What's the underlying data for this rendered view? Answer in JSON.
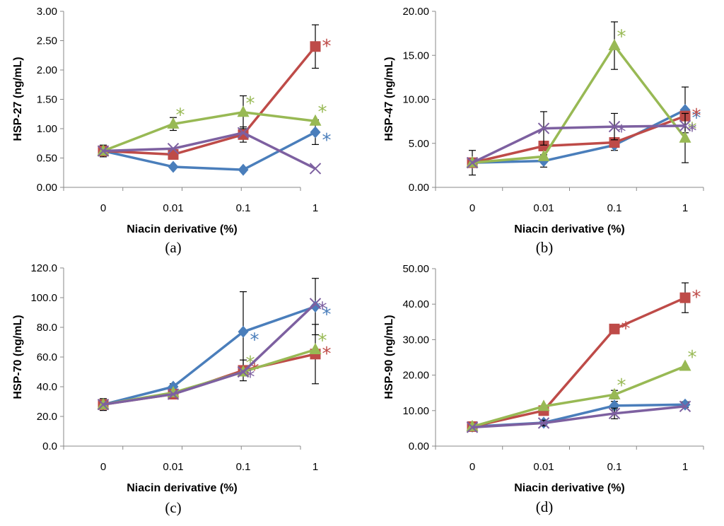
{
  "figure": {
    "colors": {
      "blue": "#4a7ebb",
      "red": "#be4b48",
      "green": "#98b954",
      "purple": "#7d60a0"
    }
  },
  "chart_data": [
    {
      "type": "line",
      "panel": "(a)",
      "xlabel": "Niacin derivative (%)",
      "ylabel": "HSP-27 (ng/mL)",
      "categories": [
        "0",
        "0.01",
        "0.1",
        "1"
      ],
      "ylim": [
        0,
        3
      ],
      "yticks": [
        "0.00",
        "0.50",
        "1.00",
        "1.50",
        "2.00",
        "2.50",
        "3.00"
      ],
      "series": [
        {
          "color": "#4a7ebb",
          "marker": "diamond",
          "values": [
            0.62,
            0.35,
            0.3,
            0.94
          ],
          "errors": [
            0,
            0,
            0,
            0.21
          ],
          "stars": [
            false,
            false,
            false,
            true
          ]
        },
        {
          "color": "#be4b48",
          "marker": "square",
          "values": [
            0.62,
            0.56,
            0.9,
            2.4
          ],
          "errors": [
            0.1,
            0,
            0.13,
            0.37
          ],
          "stars": [
            false,
            false,
            false,
            true
          ]
        },
        {
          "color": "#98b954",
          "marker": "triangle",
          "values": [
            0.62,
            1.08,
            1.28,
            1.13
          ],
          "errors": [
            0,
            0.11,
            0.28,
            0
          ],
          "stars": [
            false,
            true,
            true,
            true
          ]
        },
        {
          "color": "#7d60a0",
          "marker": "x",
          "values": [
            0.62,
            0.66,
            0.93,
            0.32
          ],
          "errors": [
            0,
            0,
            0,
            0
          ],
          "stars": [
            false,
            false,
            false,
            false
          ]
        }
      ]
    },
    {
      "type": "line",
      "panel": "(b)",
      "xlabel": "Niacin derivative (%)",
      "ylabel": "HSP-47 (ng/mL)",
      "categories": [
        "0",
        "0.01",
        "0.1",
        "1"
      ],
      "ylim": [
        0,
        20
      ],
      "yticks": [
        "0.00",
        "5.00",
        "10.00",
        "15.00",
        "20.00"
      ],
      "series": [
        {
          "color": "#4a7ebb",
          "marker": "diamond",
          "values": [
            2.8,
            3.0,
            4.8,
            8.8
          ],
          "errors": [
            1.4,
            0.7,
            0.6,
            2.6
          ],
          "stars": [
            false,
            false,
            false,
            true
          ]
        },
        {
          "color": "#be4b48",
          "marker": "square",
          "values": [
            2.8,
            4.7,
            5.1,
            8.1
          ],
          "errors": [
            0,
            0,
            0,
            0
          ],
          "stars": [
            false,
            false,
            false,
            true
          ]
        },
        {
          "color": "#98b954",
          "marker": "triangle",
          "values": [
            2.8,
            3.5,
            16.1,
            5.6
          ],
          "errors": [
            0,
            0,
            2.7,
            2.8
          ],
          "stars": [
            false,
            false,
            true,
            true
          ]
        },
        {
          "color": "#7d60a0",
          "marker": "x",
          "values": [
            2.8,
            6.7,
            6.9,
            7.0
          ],
          "errors": [
            0,
            1.9,
            1.5,
            0
          ],
          "stars": [
            false,
            false,
            true,
            true
          ]
        }
      ]
    },
    {
      "type": "line",
      "panel": "(c)",
      "xlabel": "Niacin derivative (%)",
      "ylabel": "HSP-70 (ng/mL)",
      "categories": [
        "0",
        "0.01",
        "0.1",
        "1"
      ],
      "ylim": [
        0,
        120
      ],
      "yticks": [
        "0.0",
        "20.0",
        "40.0",
        "60.0",
        "80.0",
        "100.0",
        "120.0"
      ],
      "series": [
        {
          "color": "#4a7ebb",
          "marker": "diamond",
          "values": [
            28,
            40,
            77,
            94
          ],
          "errors": [
            4,
            2,
            27,
            19
          ],
          "stars": [
            false,
            false,
            true,
            true
          ]
        },
        {
          "color": "#be4b48",
          "marker": "square",
          "values": [
            28,
            35,
            51,
            62
          ],
          "errors": [
            0,
            0,
            7,
            20
          ],
          "stars": [
            false,
            false,
            true,
            true
          ]
        },
        {
          "color": "#98b954",
          "marker": "triangle",
          "values": [
            28,
            36,
            50,
            65
          ],
          "errors": [
            0,
            0,
            0,
            0
          ],
          "stars": [
            false,
            false,
            true,
            true
          ]
        },
        {
          "color": "#7d60a0",
          "marker": "x",
          "values": [
            28,
            35,
            50,
            96
          ],
          "errors": [
            0,
            0,
            0,
            0
          ],
          "stars": [
            false,
            false,
            true,
            true
          ]
        }
      ]
    },
    {
      "type": "line",
      "panel": "(d)",
      "xlabel": "Niacin derivative (%)",
      "ylabel": "HSP-90 (ng/mL)",
      "categories": [
        "0",
        "0.01",
        "0.1",
        "1"
      ],
      "ylim": [
        0,
        50
      ],
      "yticks": [
        "0.00",
        "10.00",
        "20.00",
        "30.00",
        "40.00",
        "50.00"
      ],
      "series": [
        {
          "color": "#4a7ebb",
          "marker": "diamond",
          "values": [
            5.5,
            6.6,
            11.4,
            11.7
          ],
          "errors": [
            0,
            0,
            1.2,
            0.8
          ],
          "stars": [
            false,
            false,
            false,
            false
          ]
        },
        {
          "color": "#be4b48",
          "marker": "square",
          "values": [
            5.5,
            10.0,
            33.0,
            41.8
          ],
          "errors": [
            0,
            0,
            0,
            4.2
          ],
          "stars": [
            false,
            false,
            true,
            true
          ]
        },
        {
          "color": "#98b954",
          "marker": "triangle",
          "values": [
            5.5,
            11.2,
            14.5,
            22.5
          ],
          "errors": [
            0,
            0,
            1.2,
            0
          ],
          "stars": [
            false,
            false,
            true,
            true
          ]
        },
        {
          "color": "#7d60a0",
          "marker": "x",
          "values": [
            5.3,
            6.5,
            9.2,
            11.2
          ],
          "errors": [
            0,
            0.8,
            1.5,
            0
          ],
          "stars": [
            false,
            false,
            false,
            false
          ]
        }
      ]
    }
  ]
}
